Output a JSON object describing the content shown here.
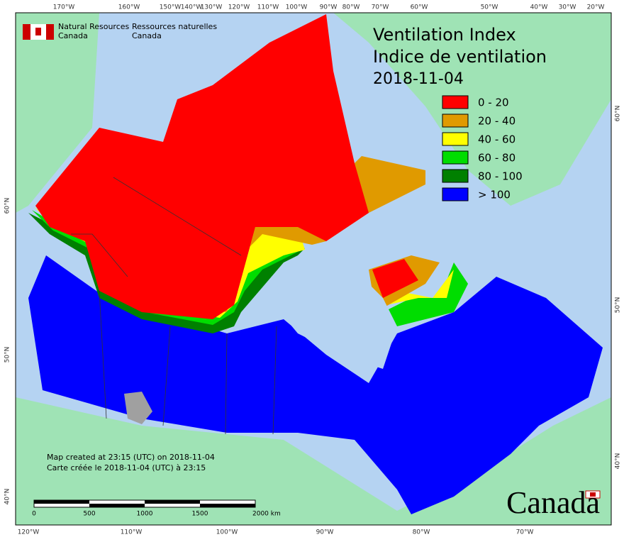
{
  "header": {
    "agency_en": [
      "Natural Resources",
      "Canada"
    ],
    "agency_fr": [
      "Ressources naturelles",
      "Canada"
    ]
  },
  "title": [
    "Ventilation Index",
    "Indice de ventilation",
    "2018-11-04"
  ],
  "legend": [
    {
      "label": "0 - 20",
      "color": "#ff0000"
    },
    {
      "label": "20 - 40",
      "color": "#e09a00"
    },
    {
      "label": "40 - 60",
      "color": "#ffff00"
    },
    {
      "label": "60 - 80",
      "color": "#00dd00"
    },
    {
      "label": "80 - 100",
      "color": "#008000"
    },
    {
      "label": "> 100",
      "color": "#0000ff"
    }
  ],
  "graticule": {
    "top": [
      "170°W",
      "160°W",
      "150°W",
      "140°W",
      "130°W",
      "120°W",
      "110°W",
      "100°W",
      "90°W",
      "80°W",
      "70°W",
      "60°W",
      "50°W",
      "40°W",
      "30°W",
      "20°W"
    ],
    "bottom": [
      "120°W",
      "110°W",
      "100°W",
      "90°W",
      "80°W",
      "70°W"
    ],
    "left": [
      "60°N",
      "50°N",
      "40°N"
    ],
    "right": [
      "60°N",
      "50°N",
      "40°N"
    ]
  },
  "notes": [
    "Map created at 23:15 (UTC) on 2018-11-04",
    "Carte créée le 2018-11-04 (UTC) à 23:15"
  ],
  "scale_bar": [
    "0",
    "500",
    "1000",
    "1500",
    "2000 km"
  ],
  "wordmark": "Canada"
}
